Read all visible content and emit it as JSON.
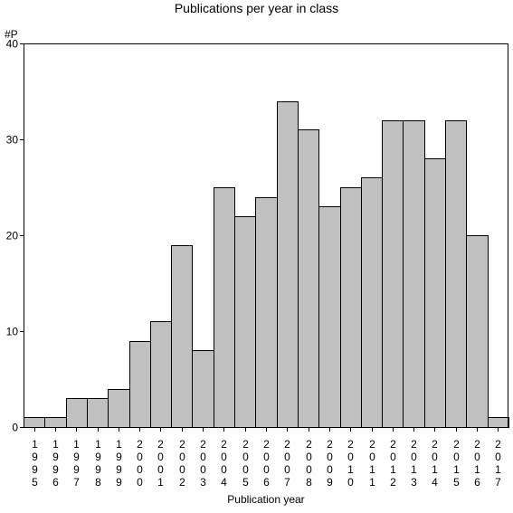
{
  "chart_data": {
    "type": "bar",
    "title": "Publications per year in class",
    "ylabel": "#P",
    "xlabel": "Publication year",
    "ylim": [
      0,
      40
    ],
    "yticks": [
      0,
      10,
      20,
      30,
      40
    ],
    "grid": false,
    "categories": [
      "1995",
      "1996",
      "1997",
      "1998",
      "1999",
      "2000",
      "2001",
      "2002",
      "2003",
      "2004",
      "2005",
      "2006",
      "2007",
      "2008",
      "2009",
      "2010",
      "2011",
      "2012",
      "2013",
      "2014",
      "2015",
      "2016",
      "2017"
    ],
    "values": [
      1,
      1,
      3,
      3,
      4,
      9,
      11,
      19,
      8,
      25,
      22,
      24,
      34,
      31,
      23,
      25,
      26,
      32,
      32,
      28,
      32,
      20,
      1
    ],
    "bar_color": "#c0c0c0",
    "edge_color": "#000000"
  }
}
